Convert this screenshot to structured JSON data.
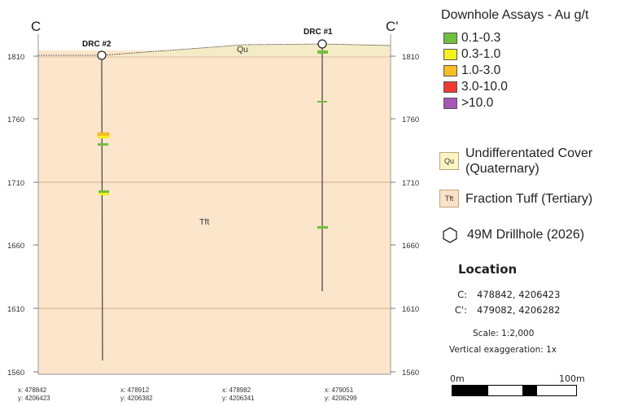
{
  "section": {
    "left_end_label": "C",
    "right_end_label": "C'",
    "elevation_labels": [
      "1810",
      "1760",
      "1710",
      "1660",
      "1610",
      "1560"
    ],
    "holes": [
      {
        "name": "DRC #2"
      },
      {
        "name": "DRC #1"
      }
    ],
    "unit_labels": {
      "cover": "Qu",
      "tuff": "Tft"
    },
    "bottom_coords": [
      {
        "x": "x: 478842",
        "y": "y: 4206423"
      },
      {
        "x": "x: 478912",
        "y": "y: 4206382"
      },
      {
        "x": "x: 478982",
        "y": "y: 4206341"
      },
      {
        "x": "x: 479051",
        "y": "y: 4206299"
      }
    ],
    "colors": {
      "tuff": "#fbe5cb",
      "cover": "#f4ecc4",
      "gridline": "#c49a74",
      "trace": "#333333"
    }
  },
  "legend": {
    "title": "Downhole Assays - Au g/t",
    "assays": [
      {
        "label": "0.1-0.3",
        "color": "#70c040"
      },
      {
        "label": "0.3-1.0",
        "color": "#f5f01e"
      },
      {
        "label": "1.0-3.0",
        "color": "#f7be23"
      },
      {
        "label": "3.0-10.0",
        "color": "#ef3a34"
      },
      {
        "label": ">10.0",
        "color": "#a457b4"
      }
    ],
    "units": [
      {
        "code": "Qu",
        "line1": "Undifferentated Cover",
        "line2": "(Quaternary)",
        "color": "#fbf5c2"
      },
      {
        "code": "Tft",
        "line1": "Fraction Tuff (Tertiary)",
        "line2": "",
        "color": "#fbe1c6"
      }
    ],
    "drillhole_label": "49M Drillhole (2026)",
    "location": {
      "title": "Location",
      "c_key": "C:",
      "c_value": "478842, 4206423",
      "cp_key": "C':",
      "cp_value": "479082, 4206282"
    },
    "scale": "Scale: 1:2,000",
    "vertical_exaggeration": "Vertical exaggeration: 1x",
    "scalebar": {
      "left": "0m",
      "right": "100m"
    }
  }
}
